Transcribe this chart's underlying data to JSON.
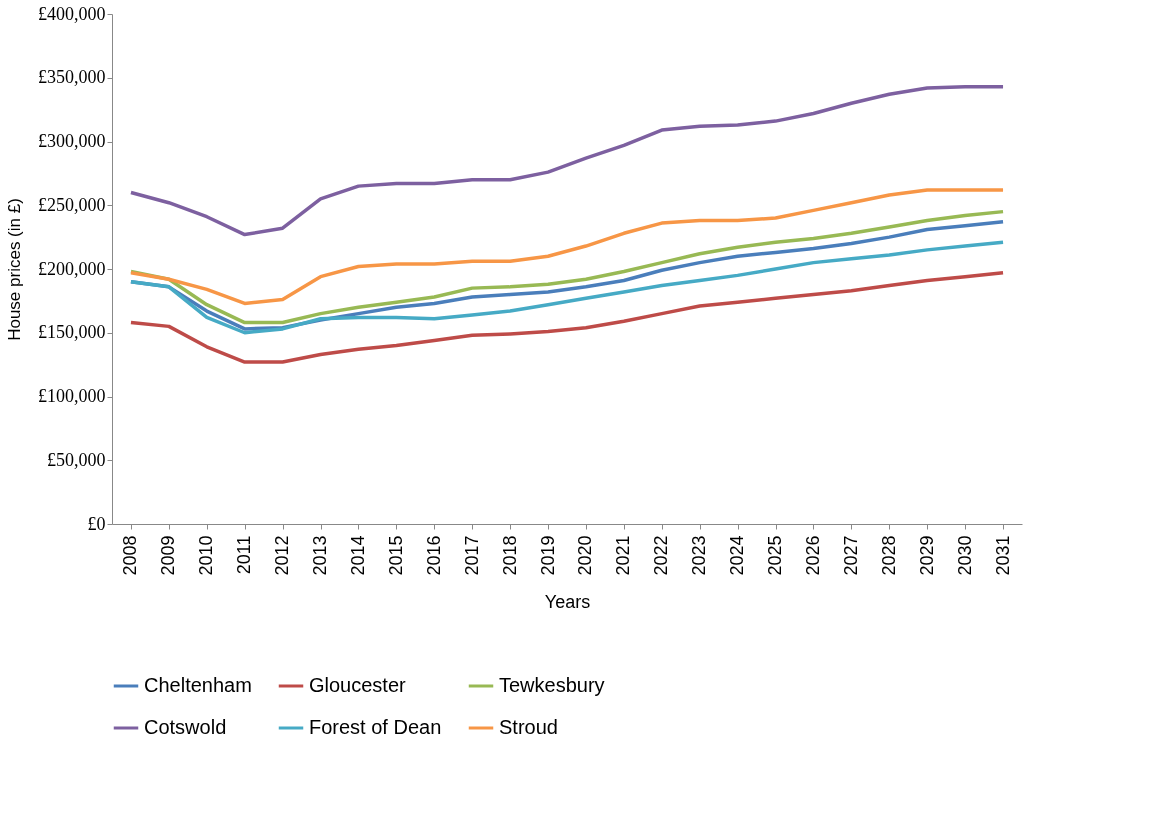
{
  "chart_data": {
    "type": "line",
    "xlabel": "Years",
    "ylabel": "House prices (in £)",
    "categories": [
      "2008",
      "2009",
      "2010",
      "2011",
      "2012",
      "2013",
      "2014",
      "2015",
      "2016",
      "2017",
      "2018",
      "2019",
      "2020",
      "2021",
      "2022",
      "2023",
      "2024",
      "2025",
      "2026",
      "2027",
      "2028",
      "2029",
      "2030",
      "2031"
    ],
    "series": [
      {
        "name": "Cheltenham",
        "color": "#4a7ebb",
        "values": [
          190000,
          186000,
          167000,
          153000,
          154000,
          160000,
          165000,
          170000,
          173000,
          178000,
          180000,
          182000,
          186000,
          191000,
          199000,
          205000,
          210000,
          213000,
          216000,
          220000,
          225000,
          231000,
          234000,
          237000
        ]
      },
      {
        "name": "Gloucester",
        "color": "#be4b48",
        "values": [
          158000,
          155000,
          139000,
          127000,
          127000,
          133000,
          137000,
          140000,
          144000,
          148000,
          149000,
          151000,
          154000,
          159000,
          165000,
          171000,
          174000,
          177000,
          180000,
          183000,
          187000,
          191000,
          194000,
          197000
        ]
      },
      {
        "name": "Tewkesbury",
        "color": "#98b954",
        "values": [
          198000,
          192000,
          172000,
          158000,
          158000,
          165000,
          170000,
          174000,
          178000,
          185000,
          186000,
          188000,
          192000,
          198000,
          205000,
          212000,
          217000,
          221000,
          224000,
          228000,
          233000,
          238000,
          242000,
          245000
        ]
      },
      {
        "name": "Cotswold",
        "color": "#7d60a0",
        "values": [
          260000,
          252000,
          241000,
          227000,
          232000,
          255000,
          265000,
          267000,
          267000,
          270000,
          270000,
          276000,
          287000,
          297000,
          309000,
          312000,
          313000,
          316000,
          322000,
          330000,
          337000,
          342000,
          343000,
          343000
        ]
      },
      {
        "name": "Forest of Dean",
        "color": "#46aac5",
        "values": [
          190000,
          186000,
          162000,
          150000,
          153000,
          161000,
          162000,
          162000,
          161000,
          164000,
          167000,
          172000,
          177000,
          182000,
          187000,
          191000,
          195000,
          200000,
          205000,
          208000,
          211000,
          215000,
          218000,
          221000
        ]
      },
      {
        "name": "Stroud",
        "color": "#f79646",
        "values": [
          197000,
          192000,
          184000,
          173000,
          176000,
          194000,
          202000,
          204000,
          204000,
          206000,
          206000,
          210000,
          218000,
          228000,
          236000,
          238000,
          238000,
          240000,
          246000,
          252000,
          258000,
          262000,
          262000,
          262000
        ]
      }
    ],
    "ylim": [
      0,
      400000
    ],
    "yticks": [
      {
        "value": 0,
        "label": "£0"
      },
      {
        "value": 50000,
        "label": "£50,000"
      },
      {
        "value": 100000,
        "label": "£100,000"
      },
      {
        "value": 150000,
        "label": "£150,000"
      },
      {
        "value": 200000,
        "label": "£200,000"
      },
      {
        "value": 250000,
        "label": "£250,000"
      },
      {
        "value": 300000,
        "label": "£300,000"
      },
      {
        "value": 350000,
        "label": "£350,000"
      },
      {
        "value": 400000,
        "label": "£400,000"
      }
    ],
    "grid": false,
    "legend": "bottom",
    "marker": "none",
    "line_style": "solid"
  }
}
